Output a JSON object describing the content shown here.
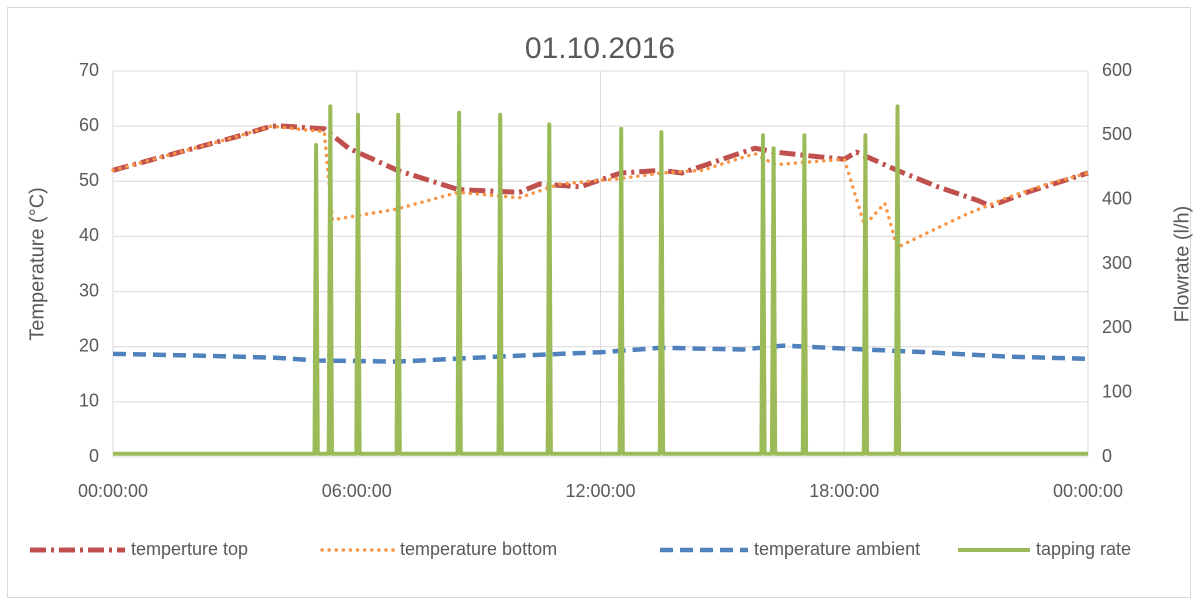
{
  "chart_data": {
    "type": "line",
    "title": "01.10.2016",
    "ylabel": "Temperature (°C)",
    "y2label": "Flowrate (l/h)",
    "xlim": [
      0,
      24
    ],
    "xticks": [
      {
        "value": 0,
        "label": "00:00:00"
      },
      {
        "value": 6,
        "label": "06:00:00"
      },
      {
        "value": 12,
        "label": "12:00:00"
      },
      {
        "value": 18,
        "label": "18:00:00"
      },
      {
        "value": 24,
        "label": "00:00:00"
      }
    ],
    "ylim": [
      0,
      70
    ],
    "yticks": [
      0,
      10,
      20,
      30,
      40,
      50,
      60,
      70
    ],
    "y2lim": [
      0,
      600
    ],
    "y2ticks": [
      0,
      100,
      200,
      300,
      400,
      500,
      600
    ],
    "grid": true,
    "legend": "bottom",
    "series": [
      {
        "name": "temperture top",
        "color": "#c0504d",
        "dash": "long-dash-dot",
        "x": [
          0,
          1,
          2,
          3,
          3.9,
          4.2,
          5.2,
          5.8,
          7,
          8.5,
          10,
          10.5,
          11.5,
          12.5,
          13.5,
          14,
          15.8,
          16.3,
          17.3,
          18,
          18.3,
          19.3,
          20.3,
          21.3,
          21.6,
          22.5,
          24
        ],
        "values": [
          52,
          54,
          56,
          58,
          60,
          60,
          59.5,
          56,
          52,
          48.5,
          48,
          49.5,
          49,
          51.5,
          52,
          51.5,
          56,
          55.3,
          54.5,
          54,
          55.3,
          52,
          49,
          46.5,
          45.5,
          48,
          51.5
        ]
      },
      {
        "name": "temperature bottom",
        "color": "#f79646",
        "dash": "dot",
        "x": [
          0,
          1,
          2,
          3,
          3.9,
          4.5,
          5.2,
          5.4,
          7,
          8.5,
          10,
          11,
          12.5,
          13.5,
          14.5,
          15.8,
          16.3,
          18,
          18.5,
          19,
          19.3,
          20,
          21,
          22,
          23,
          24
        ],
        "values": [
          52,
          54,
          56,
          58,
          60,
          59.5,
          59,
          43,
          45,
          48,
          47,
          49.5,
          50.5,
          51.5,
          52,
          55,
          53,
          54,
          42,
          46,
          38,
          40.5,
          44,
          47,
          49.5,
          51.5
        ]
      },
      {
        "name": "temperature ambient",
        "color": "#4f81bd",
        "dash": "dash",
        "x": [
          0,
          2,
          4,
          5,
          7,
          9.5,
          11,
          12,
          13.5,
          15.5,
          16.5,
          18.5,
          20,
          22,
          24
        ],
        "values": [
          18.7,
          18.4,
          18,
          17.5,
          17.3,
          18.2,
          18.7,
          19,
          19.8,
          19.5,
          20.2,
          19.5,
          19,
          18.2,
          17.8
        ]
      },
      {
        "name": "tapping rate",
        "color": "#9bbb59",
        "dash": "solid",
        "axis": "y2",
        "x": [
          0,
          4.96,
          5.0,
          5.04,
          5.31,
          5.35,
          5.39,
          5.99,
          6.03,
          6.07,
          6.98,
          7.02,
          7.06,
          8.48,
          8.52,
          8.56,
          9.49,
          9.53,
          9.57,
          10.7,
          10.74,
          10.78,
          12.47,
          12.51,
          12.55,
          13.46,
          13.5,
          13.54,
          15.96,
          16.0,
          16.04,
          16.22,
          16.26,
          16.3,
          16.98,
          17.02,
          17.06,
          18.48,
          18.52,
          18.56,
          19.27,
          19.31,
          19.35,
          24
        ],
        "values": [
          5,
          5,
          485,
          5,
          5,
          545,
          5,
          5,
          532,
          5,
          5,
          532,
          5,
          5,
          535,
          5,
          5,
          532,
          5,
          5,
          517,
          5,
          5,
          510,
          5,
          5,
          505,
          5,
          5,
          500,
          5,
          5,
          480,
          5,
          5,
          500,
          5,
          5,
          500,
          5,
          5,
          545,
          5,
          5
        ]
      }
    ]
  }
}
